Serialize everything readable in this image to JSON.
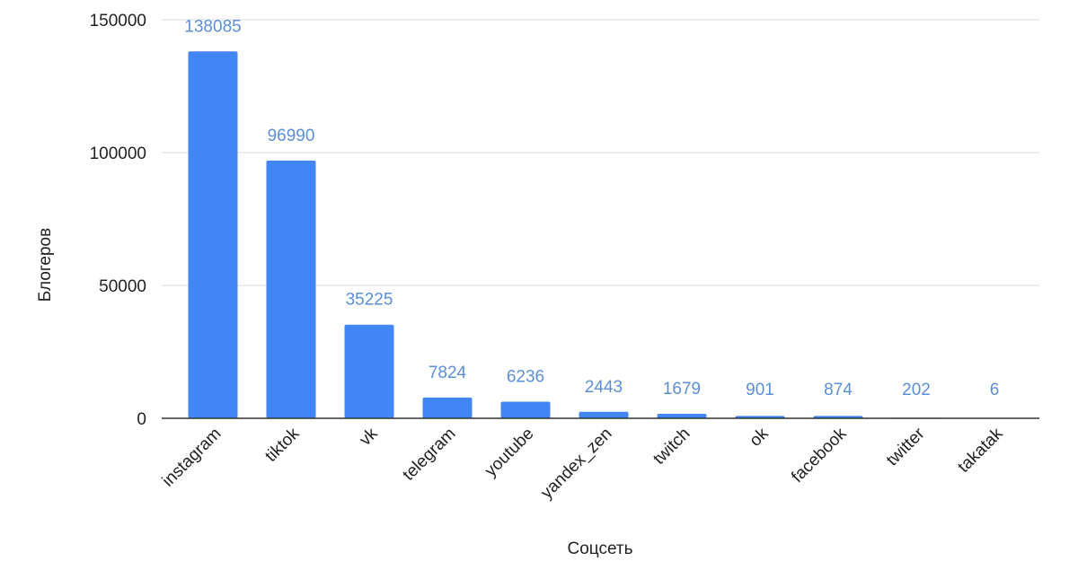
{
  "chart_data": {
    "type": "bar",
    "categories": [
      "instagram",
      "tiktok",
      "vk",
      "telegram",
      "youtube",
      "yandex_zen",
      "twitch",
      "ok",
      "facebook",
      "twitter",
      "takatak"
    ],
    "values": [
      138085,
      96990,
      35225,
      7824,
      6236,
      2443,
      1679,
      901,
      874,
      202,
      6
    ],
    "data_labels": [
      "138085",
      "96990",
      "35225",
      "7824",
      "6236",
      "2443",
      "1679",
      "901",
      "874",
      "202",
      "6"
    ],
    "title": "",
    "xlabel": "Соцсеть",
    "ylabel": "Блогеров",
    "ylim": [
      0,
      150000
    ],
    "yticks": [
      0,
      50000,
      100000,
      150000
    ],
    "ytick_labels": [
      "0",
      "50000",
      "100000",
      "150000"
    ],
    "grid": true,
    "legend": "none",
    "colors": {
      "bar": "#4285f4",
      "data_label": "#5b8fd8",
      "grid": "#d9d9d9",
      "axis": "#333333",
      "text": "#222222"
    }
  }
}
